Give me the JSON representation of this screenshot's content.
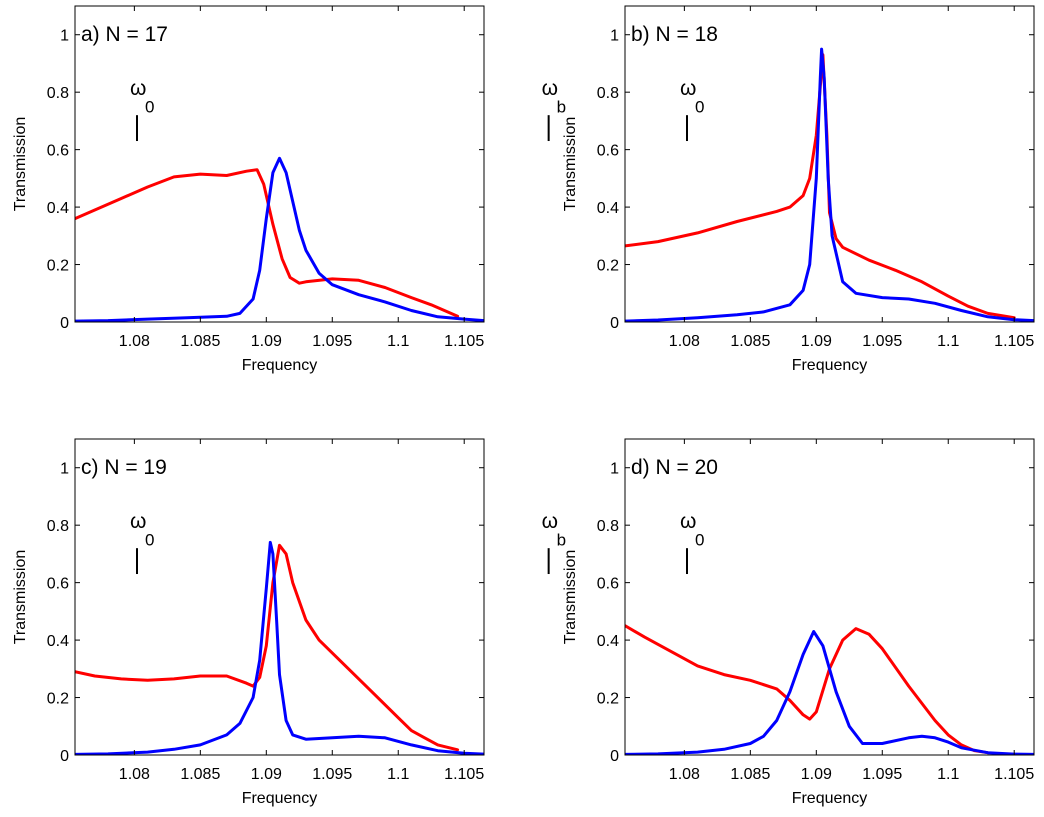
{
  "chart_data": [
    {
      "type": "line",
      "panel_label": "a) N = 17",
      "xlabel": "Frequency",
      "ylabel": "Transmission",
      "xlim": [
        1.0755,
        1.1065
      ],
      "ylim": [
        0,
        1.1
      ],
      "xticks": [
        "1.08",
        "1.085",
        "1.09",
        "1.095",
        "1.1",
        "1.105"
      ],
      "yticks": [
        "0",
        "0.2",
        "0.4",
        "0.6",
        "0.8",
        "1"
      ],
      "grid": false,
      "markers": [
        {
          "label": "ω",
          "subscript": "0",
          "x": 1.0802
        },
        {
          "label": "ω",
          "subscript": "b",
          "x": 1.1114
        }
      ],
      "series": [
        {
          "color": "#ff0000",
          "points": [
            [
              1.0755,
              0.36
            ],
            [
              1.077,
              0.39
            ],
            [
              1.079,
              0.43
            ],
            [
              1.081,
              0.47
            ],
            [
              1.083,
              0.505
            ],
            [
              1.085,
              0.515
            ],
            [
              1.087,
              0.51
            ],
            [
              1.0885,
              0.525
            ],
            [
              1.0893,
              0.53
            ],
            [
              1.0898,
              0.48
            ],
            [
              1.0905,
              0.34
            ],
            [
              1.0912,
              0.22
            ],
            [
              1.0918,
              0.155
            ],
            [
              1.0925,
              0.135
            ],
            [
              1.093,
              0.14
            ],
            [
              1.095,
              0.15
            ],
            [
              1.097,
              0.145
            ],
            [
              1.099,
              0.12
            ],
            [
              1.101,
              0.085
            ],
            [
              1.1025,
              0.06
            ],
            [
              1.1035,
              0.04
            ],
            [
              1.1045,
              0.02
            ]
          ]
        },
        {
          "color": "#0000ff",
          "points": [
            [
              1.0755,
              0.003
            ],
            [
              1.078,
              0.005
            ],
            [
              1.081,
              0.01
            ],
            [
              1.084,
              0.015
            ],
            [
              1.087,
              0.02
            ],
            [
              1.088,
              0.03
            ],
            [
              1.089,
              0.08
            ],
            [
              1.0895,
              0.18
            ],
            [
              1.09,
              0.36
            ],
            [
              1.0905,
              0.52
            ],
            [
              1.091,
              0.57
            ],
            [
              1.0915,
              0.52
            ],
            [
              1.092,
              0.42
            ],
            [
              1.0925,
              0.32
            ],
            [
              1.093,
              0.25
            ],
            [
              1.094,
              0.17
            ],
            [
              1.095,
              0.13
            ],
            [
              1.097,
              0.095
            ],
            [
              1.099,
              0.07
            ],
            [
              1.101,
              0.04
            ],
            [
              1.103,
              0.018
            ],
            [
              1.105,
              0.01
            ],
            [
              1.1065,
              0.005
            ]
          ]
        }
      ]
    },
    {
      "type": "line",
      "panel_label": "b) N = 18",
      "xlabel": "Frequency",
      "ylabel": "Transmission",
      "xlim": [
        1.0755,
        1.1065
      ],
      "ylim": [
        0,
        1.1
      ],
      "xticks": [
        "1.08",
        "1.085",
        "1.09",
        "1.095",
        "1.1",
        "1.105"
      ],
      "yticks": [
        "0",
        "0.2",
        "0.4",
        "0.6",
        "0.8",
        "1"
      ],
      "grid": false,
      "markers": [
        {
          "label": "ω",
          "subscript": "0",
          "x": 1.0802
        },
        {
          "label": "ω",
          "subscript": "b",
          "x": 1.1114
        }
      ],
      "series": [
        {
          "color": "#ff0000",
          "points": [
            [
              1.0755,
              0.265
            ],
            [
              1.078,
              0.28
            ],
            [
              1.081,
              0.31
            ],
            [
              1.084,
              0.35
            ],
            [
              1.087,
              0.385
            ],
            [
              1.088,
              0.4
            ],
            [
              1.089,
              0.44
            ],
            [
              1.0895,
              0.5
            ],
            [
              1.09,
              0.65
            ],
            [
              1.0903,
              0.82
            ],
            [
              1.0905,
              0.93
            ],
            [
              1.0908,
              0.65
            ],
            [
              1.091,
              0.38
            ],
            [
              1.0915,
              0.29
            ],
            [
              1.092,
              0.26
            ],
            [
              1.094,
              0.215
            ],
            [
              1.096,
              0.18
            ],
            [
              1.098,
              0.14
            ],
            [
              1.1,
              0.09
            ],
            [
              1.1015,
              0.055
            ],
            [
              1.103,
              0.03
            ],
            [
              1.105,
              0.015
            ]
          ]
        },
        {
          "color": "#0000ff",
          "points": [
            [
              1.0755,
              0.003
            ],
            [
              1.078,
              0.007
            ],
            [
              1.081,
              0.015
            ],
            [
              1.084,
              0.025
            ],
            [
              1.086,
              0.035
            ],
            [
              1.088,
              0.06
            ],
            [
              1.089,
              0.11
            ],
            [
              1.0895,
              0.2
            ],
            [
              1.09,
              0.5
            ],
            [
              1.0903,
              0.85
            ],
            [
              1.0904,
              0.95
            ],
            [
              1.0906,
              0.85
            ],
            [
              1.0909,
              0.5
            ],
            [
              1.0912,
              0.3
            ],
            [
              1.092,
              0.14
            ],
            [
              1.093,
              0.1
            ],
            [
              1.095,
              0.085
            ],
            [
              1.097,
              0.08
            ],
            [
              1.099,
              0.065
            ],
            [
              1.101,
              0.04
            ],
            [
              1.103,
              0.018
            ],
            [
              1.105,
              0.008
            ],
            [
              1.1065,
              0.005
            ]
          ]
        }
      ]
    },
    {
      "type": "line",
      "panel_label": "c) N = 19",
      "xlabel": "Frequency",
      "ylabel": "Transmission",
      "xlim": [
        1.0755,
        1.1065
      ],
      "ylim": [
        0,
        1.1
      ],
      "xticks": [
        "1.08",
        "1.085",
        "1.09",
        "1.095",
        "1.1",
        "1.105"
      ],
      "yticks": [
        "0",
        "0.2",
        "0.4",
        "0.6",
        "0.8",
        "1"
      ],
      "grid": false,
      "markers": [
        {
          "label": "ω",
          "subscript": "0",
          "x": 1.0802
        },
        {
          "label": "ω",
          "subscript": "b",
          "x": 1.1114
        }
      ],
      "series": [
        {
          "color": "#ff0000",
          "points": [
            [
              1.0755,
              0.29
            ],
            [
              1.077,
              0.275
            ],
            [
              1.079,
              0.265
            ],
            [
              1.081,
              0.26
            ],
            [
              1.083,
              0.265
            ],
            [
              1.085,
              0.275
            ],
            [
              1.087,
              0.275
            ],
            [
              1.0885,
              0.25
            ],
            [
              1.089,
              0.24
            ],
            [
              1.0895,
              0.27
            ],
            [
              1.09,
              0.38
            ],
            [
              1.0905,
              0.6
            ],
            [
              1.091,
              0.73
            ],
            [
              1.0915,
              0.7
            ],
            [
              1.092,
              0.6
            ],
            [
              1.093,
              0.47
            ],
            [
              1.094,
              0.4
            ],
            [
              1.096,
              0.31
            ],
            [
              1.098,
              0.22
            ],
            [
              1.1,
              0.13
            ],
            [
              1.101,
              0.085
            ],
            [
              1.102,
              0.06
            ],
            [
              1.103,
              0.035
            ],
            [
              1.1045,
              0.018
            ]
          ]
        },
        {
          "color": "#0000ff",
          "points": [
            [
              1.0755,
              0.002
            ],
            [
              1.078,
              0.004
            ],
            [
              1.081,
              0.01
            ],
            [
              1.083,
              0.02
            ],
            [
              1.085,
              0.035
            ],
            [
              1.087,
              0.07
            ],
            [
              1.088,
              0.11
            ],
            [
              1.089,
              0.2
            ],
            [
              1.0895,
              0.33
            ],
            [
              1.09,
              0.58
            ],
            [
              1.0903,
              0.74
            ],
            [
              1.0905,
              0.7
            ],
            [
              1.0908,
              0.45
            ],
            [
              1.091,
              0.28
            ],
            [
              1.0915,
              0.12
            ],
            [
              1.092,
              0.07
            ],
            [
              1.093,
              0.055
            ],
            [
              1.095,
              0.06
            ],
            [
              1.097,
              0.065
            ],
            [
              1.099,
              0.06
            ],
            [
              1.101,
              0.035
            ],
            [
              1.103,
              0.015
            ],
            [
              1.105,
              0.006
            ],
            [
              1.1065,
              0.003
            ]
          ]
        }
      ]
    },
    {
      "type": "line",
      "panel_label": "d) N = 20",
      "xlabel": "Frequency",
      "ylabel": "Transmission",
      "xlim": [
        1.0755,
        1.1065
      ],
      "ylim": [
        0,
        1.1
      ],
      "xticks": [
        "1.08",
        "1.085",
        "1.09",
        "1.095",
        "1.1",
        "1.105"
      ],
      "yticks": [
        "0",
        "0.2",
        "0.4",
        "0.6",
        "0.8",
        "1"
      ],
      "grid": false,
      "markers": [
        {
          "label": "ω",
          "subscript": "0",
          "x": 1.0802
        },
        {
          "label": "ω",
          "subscript": "b",
          "x": 1.1114
        }
      ],
      "series": [
        {
          "color": "#ff0000",
          "points": [
            [
              1.0755,
              0.45
            ],
            [
              1.077,
              0.41
            ],
            [
              1.079,
              0.36
            ],
            [
              1.081,
              0.31
            ],
            [
              1.083,
              0.28
            ],
            [
              1.085,
              0.26
            ],
            [
              1.087,
              0.23
            ],
            [
              1.088,
              0.19
            ],
            [
              1.089,
              0.14
            ],
            [
              1.0895,
              0.125
            ],
            [
              1.09,
              0.15
            ],
            [
              1.091,
              0.3
            ],
            [
              1.092,
              0.4
            ],
            [
              1.093,
              0.44
            ],
            [
              1.094,
              0.42
            ],
            [
              1.095,
              0.37
            ],
            [
              1.097,
              0.24
            ],
            [
              1.099,
              0.12
            ],
            [
              1.1,
              0.07
            ],
            [
              1.101,
              0.035
            ],
            [
              1.102,
              0.015
            ],
            [
              1.103,
              0.008
            ]
          ]
        },
        {
          "color": "#0000ff",
          "points": [
            [
              1.0755,
              0.002
            ],
            [
              1.078,
              0.004
            ],
            [
              1.081,
              0.01
            ],
            [
              1.083,
              0.02
            ],
            [
              1.085,
              0.04
            ],
            [
              1.086,
              0.065
            ],
            [
              1.087,
              0.12
            ],
            [
              1.088,
              0.22
            ],
            [
              1.089,
              0.35
            ],
            [
              1.0898,
              0.43
            ],
            [
              1.0905,
              0.38
            ],
            [
              1.0915,
              0.22
            ],
            [
              1.0925,
              0.1
            ],
            [
              1.0935,
              0.04
            ],
            [
              1.095,
              0.04
            ],
            [
              1.097,
              0.06
            ],
            [
              1.098,
              0.065
            ],
            [
              1.099,
              0.06
            ],
            [
              1.1,
              0.045
            ],
            [
              1.101,
              0.025
            ],
            [
              1.103,
              0.008
            ],
            [
              1.105,
              0.003
            ],
            [
              1.1065,
              0.002
            ]
          ]
        }
      ]
    }
  ]
}
